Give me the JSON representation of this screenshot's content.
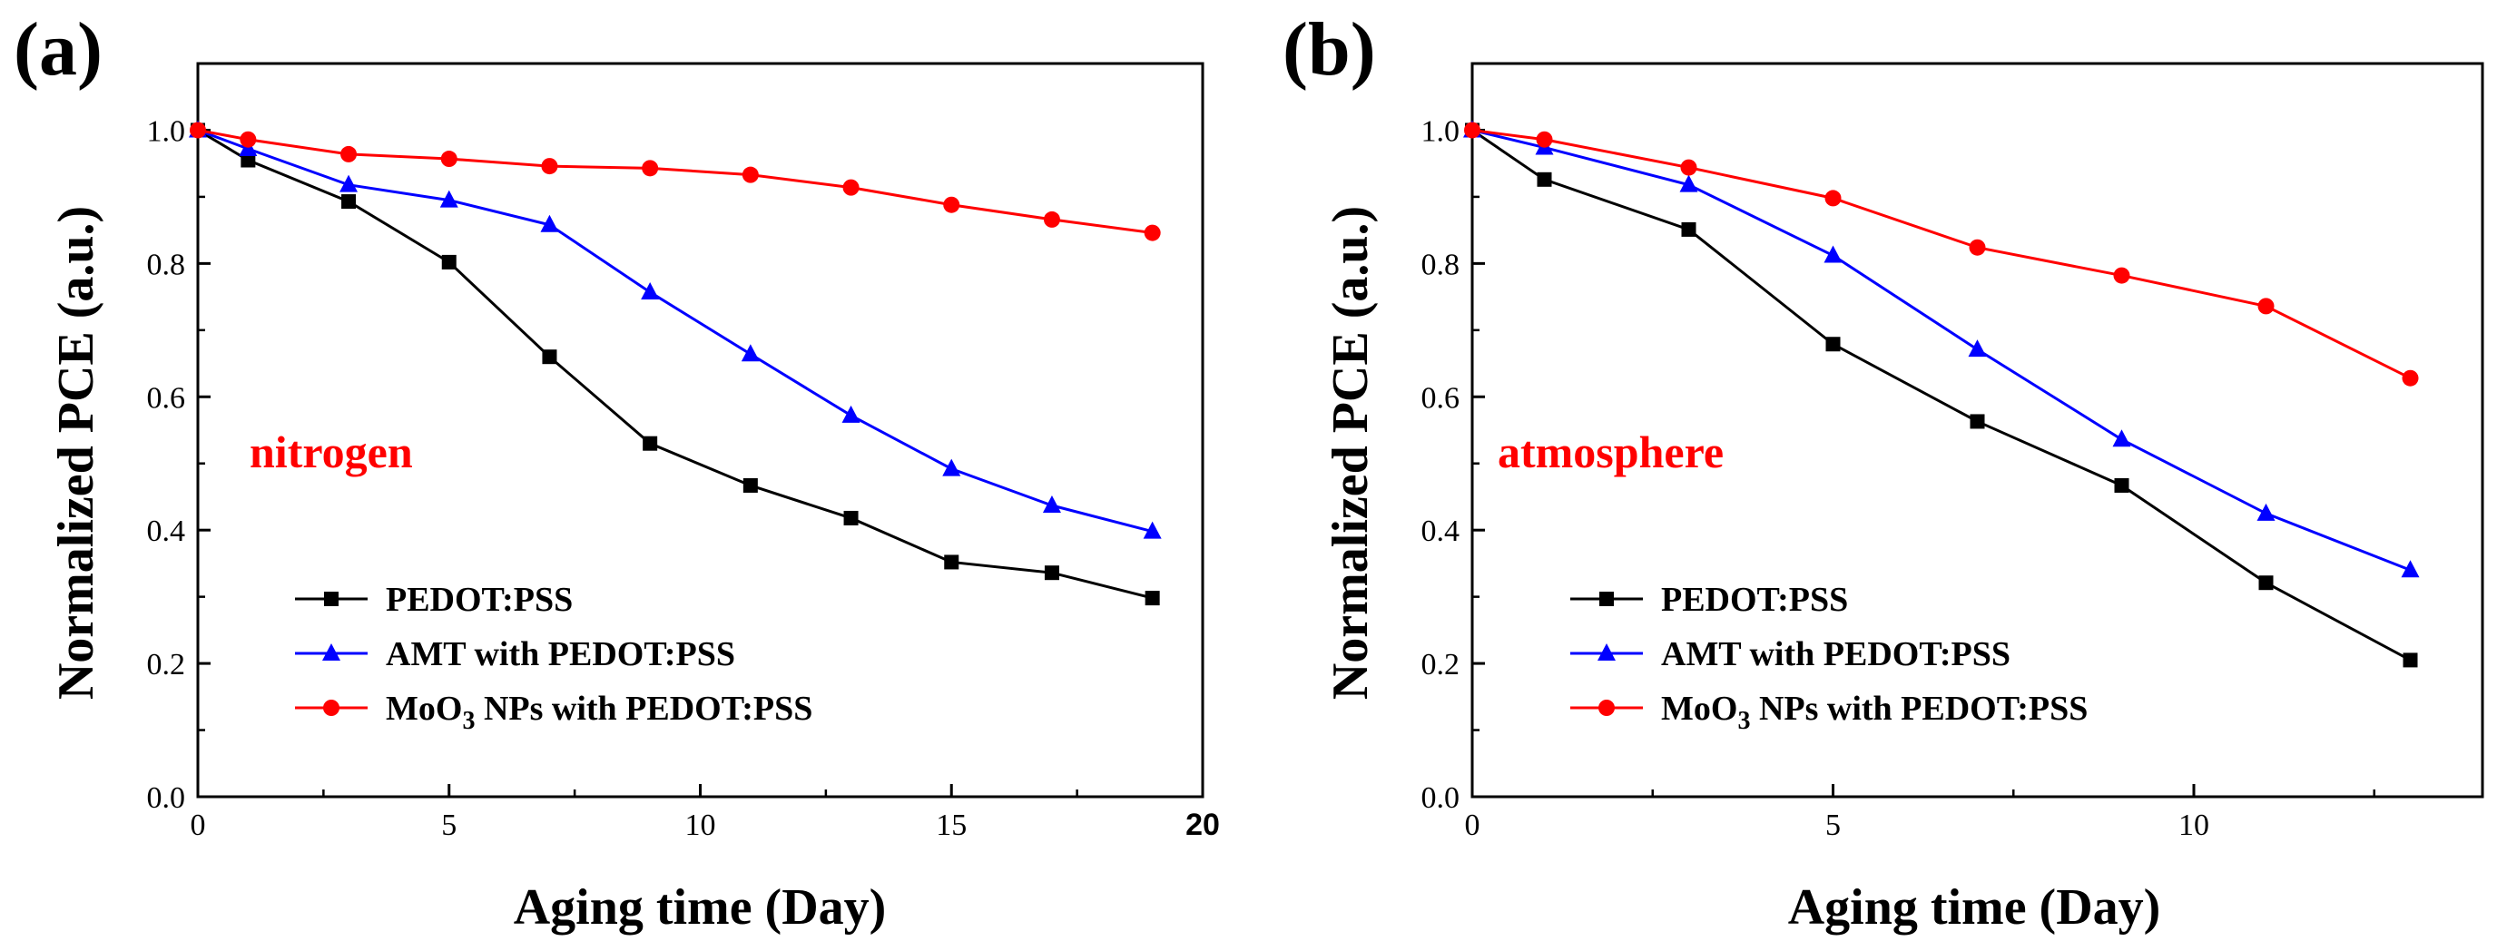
{
  "figure": {
    "background": "#ffffff",
    "axis_color": "#000000"
  },
  "chart_data": [
    {
      "type": "line",
      "panel_label": "(a)",
      "annotation": {
        "text": "nitrogen",
        "color": "#ff0000"
      },
      "xlabel": "Aging time (Day)",
      "ylabel": "Normalized PCE (a.u.)",
      "xlim": [
        0,
        20
      ],
      "ylim": [
        0,
        1.1
      ],
      "x_ticks": [
        {
          "value": 0,
          "label": "0"
        },
        {
          "value": 5,
          "label": "5"
        },
        {
          "value": 10,
          "label": "10"
        },
        {
          "value": 15,
          "label": "15"
        },
        {
          "value": 20,
          "label": "20"
        }
      ],
      "x_minor_ticks": [
        2.5,
        7.5,
        12.5,
        17.5
      ],
      "y_ticks": [
        {
          "value": 0,
          "label": "0.0"
        },
        {
          "value": 0.2,
          "label": "0.2"
        },
        {
          "value": 0.4,
          "label": "0.4"
        },
        {
          "value": 0.6,
          "label": "0.6"
        },
        {
          "value": 0.8,
          "label": "0.8"
        },
        {
          "value": 1.0,
          "label": "1.0"
        }
      ],
      "y_minor_ticks": [
        0.1,
        0.3,
        0.5,
        0.7,
        0.9
      ],
      "grid": false,
      "legend_position": "lower-left",
      "series": [
        {
          "name": "PEDOT:PSS",
          "color": "#000000",
          "marker": "square",
          "x": [
            0,
            1,
            3,
            5,
            7,
            9,
            11,
            13,
            15,
            17,
            19
          ],
          "y": [
            1.0,
            0.955,
            0.893,
            0.802,
            0.66,
            0.53,
            0.467,
            0.418,
            0.352,
            0.336,
            0.298
          ]
        },
        {
          "name": "AMT with PEDOT:PSS",
          "color": "#0000ff",
          "marker": "triangle",
          "x": [
            0,
            1,
            3,
            5,
            7,
            9,
            11,
            13,
            15,
            17,
            19
          ],
          "y": [
            1.0,
            0.972,
            0.918,
            0.895,
            0.858,
            0.757,
            0.664,
            0.572,
            0.492,
            0.437,
            0.398
          ]
        },
        {
          "name": "MoO3 NPs with PEDOT:PSS",
          "name_parts": [
            "MoO",
            "3",
            " NPs with PEDOT:PSS"
          ],
          "color": "#ff0000",
          "marker": "circle",
          "x": [
            0,
            1,
            3,
            5,
            7,
            9,
            11,
            13,
            15,
            17,
            19
          ],
          "y": [
            1.0,
            0.986,
            0.964,
            0.957,
            0.946,
            0.943,
            0.933,
            0.914,
            0.888,
            0.866,
            0.846
          ]
        }
      ]
    },
    {
      "type": "line",
      "panel_label": "(b)",
      "annotation": {
        "text": "atmosphere",
        "color": "#ff0000"
      },
      "xlabel": "Aging time (Day)",
      "ylabel": "Normalized PCE (a.u.)",
      "xlim": [
        0,
        14
      ],
      "ylim": [
        0,
        1.1
      ],
      "x_ticks": [
        {
          "value": 0,
          "label": "0"
        },
        {
          "value": 5,
          "label": "5"
        },
        {
          "value": 10,
          "label": "10"
        }
      ],
      "x_minor_ticks": [
        2.5,
        7.5,
        12.5
      ],
      "y_ticks": [
        {
          "value": 0,
          "label": "0.0"
        },
        {
          "value": 0.2,
          "label": "0.2"
        },
        {
          "value": 0.4,
          "label": "0.4"
        },
        {
          "value": 0.6,
          "label": "0.6"
        },
        {
          "value": 0.8,
          "label": "0.8"
        },
        {
          "value": 1.0,
          "label": "1.0"
        }
      ],
      "y_minor_ticks": [
        0.1,
        0.3,
        0.5,
        0.7,
        0.9
      ],
      "grid": false,
      "legend_position": "lower-left",
      "series": [
        {
          "name": "PEDOT:PSS",
          "color": "#000000",
          "marker": "square",
          "x": [
            0,
            1,
            3,
            5,
            7,
            9,
            11,
            13
          ],
          "y": [
            1.0,
            0.926,
            0.851,
            0.679,
            0.563,
            0.467,
            0.321,
            0.205
          ]
        },
        {
          "name": "AMT with PEDOT:PSS",
          "color": "#0000ff",
          "marker": "triangle",
          "x": [
            0,
            1,
            3,
            5,
            7,
            9,
            11,
            13
          ],
          "y": [
            1.0,
            0.974,
            0.918,
            0.812,
            0.671,
            0.536,
            0.425,
            0.34
          ]
        },
        {
          "name": "MoO3 NPs with PEDOT:PSS",
          "name_parts": [
            "MoO",
            "3",
            " NPs with PEDOT:PSS"
          ],
          "color": "#ff0000",
          "marker": "circle",
          "x": [
            0,
            1,
            3,
            5,
            7,
            9,
            11,
            13
          ],
          "y": [
            1.0,
            0.986,
            0.944,
            0.898,
            0.824,
            0.782,
            0.736,
            0.628
          ]
        }
      ]
    }
  ]
}
